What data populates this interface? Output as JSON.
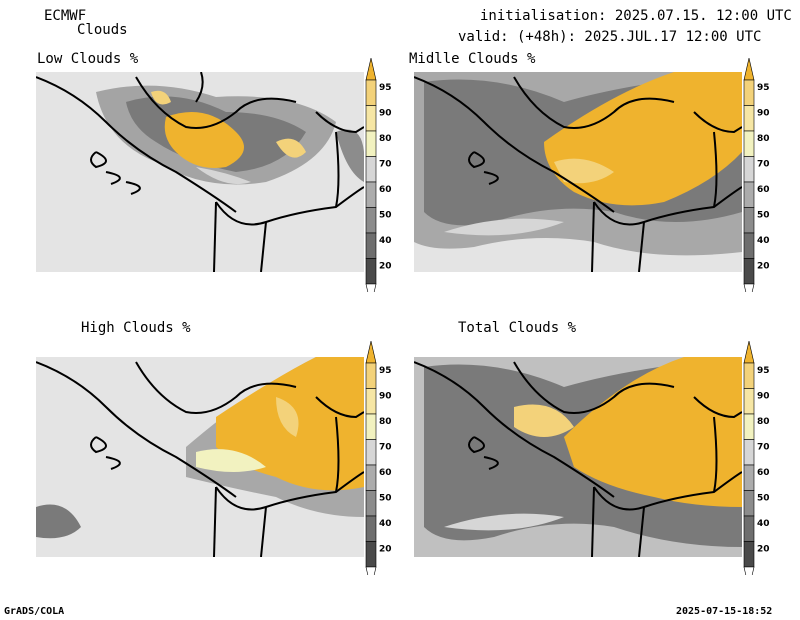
{
  "header": {
    "model": "ECMWF",
    "product": "Clouds",
    "initialisation": "initialisation: 2025.07.15. 12:00 UTC",
    "valid": "valid: (+48h): 2025.JUL.17 12:00 UTC"
  },
  "panels": [
    {
      "title": "Low Clouds %"
    },
    {
      "title": "Midlle Clouds %"
    },
    {
      "title": "High Clouds %"
    },
    {
      "title": "Total Clouds %"
    }
  ],
  "colorbar": {
    "levels": [
      "20",
      "40",
      "50",
      "60",
      "70",
      "80",
      "90",
      "95"
    ],
    "colors": [
      "#ffffff",
      "#4a4a4a",
      "#6e6e6e",
      "#8c8c8c",
      "#acacac",
      "#d6d6d6",
      "#f2f2c0",
      "#f6e6a4",
      "#f3d27a",
      "#efb32e"
    ]
  },
  "footer": {
    "left": "GrADS/COLA",
    "right": "2025-07-15-18:52"
  }
}
